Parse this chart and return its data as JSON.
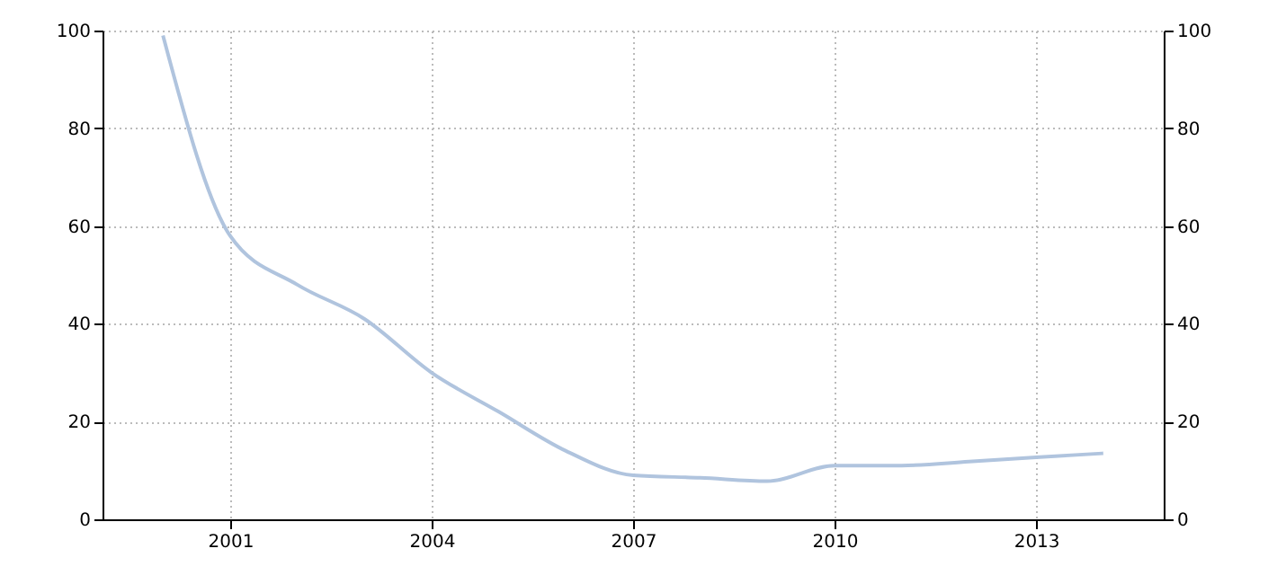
{
  "chart_data": {
    "type": "line",
    "x": [
      2000,
      2001,
      2002,
      2003,
      2004,
      2005,
      2006,
      2007,
      2008,
      2009,
      2010,
      2011,
      2012,
      2013,
      2014
    ],
    "series": [
      {
        "color": "#b0c4de",
        "values": [
          99,
          58,
          48,
          41,
          30,
          22,
          14,
          9,
          8.5,
          7.8,
          11,
          11,
          11.8,
          12.7,
          13.5
        ]
      }
    ],
    "xlim": [
      1999.1,
      2014.9
    ],
    "xticks": [
      2001,
      2004,
      2007,
      2010,
      2013
    ],
    "ylim": [
      0,
      100
    ],
    "yticks": [
      0,
      20,
      40,
      60,
      80,
      100
    ],
    "y2lim": [
      0,
      100
    ],
    "y2ticks": [
      0,
      20,
      40,
      60,
      80,
      100
    ],
    "grid": true,
    "marker": "none",
    "line_style": "solid"
  }
}
